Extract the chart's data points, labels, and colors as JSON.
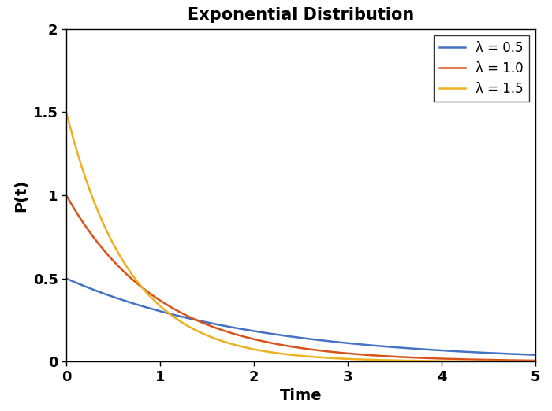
{
  "title": "Exponential Distribution",
  "xlabel": "Time",
  "ylabel": "P(t)",
  "xlim": [
    0,
    5
  ],
  "ylim": [
    0,
    2
  ],
  "lambdas": [
    0.5,
    1.0,
    1.5
  ],
  "colors": [
    "#4472C4",
    "#D95319",
    "#EDB120"
  ],
  "legend_labels": [
    "λ = 0.5",
    "λ = 1.0",
    "λ = 1.5"
  ],
  "line_width": 1.8,
  "title_fontsize": 15,
  "label_fontsize": 14,
  "tick_fontsize": 13,
  "legend_fontsize": 12,
  "xticks": [
    0,
    1,
    2,
    3,
    4,
    5
  ],
  "yticks": [
    0,
    0.5,
    1.0,
    1.5,
    2.0
  ],
  "background_color": "#ffffff"
}
